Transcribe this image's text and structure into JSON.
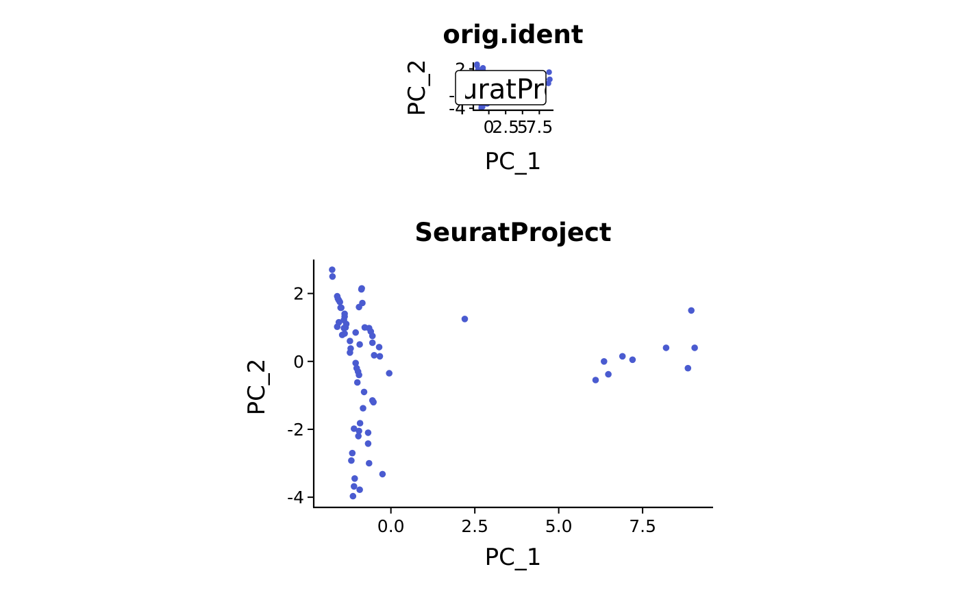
{
  "chart_data": [
    {
      "type": "scatter",
      "title": "orig.ident",
      "xlabel": "PC_1",
      "ylabel": "PC_2",
      "x_ticks": [
        0,
        2.5,
        5,
        7.5
      ],
      "x_tick_labels": [
        "0",
        "2.5",
        "5",
        "7.5"
      ],
      "y_ticks": [
        2,
        0,
        -2,
        -4
      ],
      "y_tick_labels": [
        "2",
        "0",
        "-2",
        "-4"
      ],
      "xlim": [
        -2.3,
        9.6
      ],
      "ylim": [
        -4.3,
        3.0
      ],
      "legend": {
        "placement": "center",
        "entries": [
          "SeuratProject"
        ]
      },
      "color": "#4a5bd0",
      "grid": false,
      "series_ref": "same points as panel 2"
    },
    {
      "type": "scatter",
      "title": "SeuratProject",
      "xlabel": "PC_1",
      "ylabel": "PC_2",
      "x_ticks": [
        0,
        2.5,
        5,
        7.5
      ],
      "x_tick_labels": [
        "0.0",
        "2.5",
        "5.0",
        "7.5"
      ],
      "y_ticks": [
        2,
        0,
        -2,
        -4
      ],
      "y_tick_labels": [
        "2",
        "0",
        "-2",
        "-4"
      ],
      "xlim": [
        -2.3,
        9.6
      ],
      "ylim": [
        -4.3,
        3.0
      ],
      "color": "#4a5bd0",
      "grid": false,
      "points": [
        [
          -1.75,
          2.7
        ],
        [
          -1.74,
          2.5
        ],
        [
          -1.6,
          1.92
        ],
        [
          -1.58,
          1.85
        ],
        [
          -1.55,
          1.8
        ],
        [
          -1.52,
          1.75
        ],
        [
          -1.5,
          1.58
        ],
        [
          -1.48,
          1.58
        ],
        [
          -1.38,
          1.4
        ],
        [
          -1.38,
          1.32
        ],
        [
          -1.4,
          1.22
        ],
        [
          -1.33,
          1.1
        ],
        [
          -1.35,
          1.0
        ],
        [
          -1.4,
          0.98
        ],
        [
          -1.55,
          1.15
        ],
        [
          -1.6,
          1.02
        ],
        [
          -1.45,
          0.78
        ],
        [
          -1.38,
          0.82
        ],
        [
          -1.22,
          0.6
        ],
        [
          -1.2,
          0.38
        ],
        [
          -1.22,
          0.26
        ],
        [
          -1.05,
          0.85
        ],
        [
          -0.93,
          0.5
        ],
        [
          -0.95,
          1.6
        ],
        [
          -0.87,
          2.15
        ],
        [
          -0.88,
          2.12
        ],
        [
          -0.85,
          1.72
        ],
        [
          -0.78,
          1.0
        ],
        [
          -0.65,
          0.98
        ],
        [
          -0.6,
          0.88
        ],
        [
          -0.55,
          0.75
        ],
        [
          -0.55,
          0.55
        ],
        [
          -0.5,
          0.18
        ],
        [
          -0.35,
          0.42
        ],
        [
          -0.33,
          0.15
        ],
        [
          -0.05,
          -0.35
        ],
        [
          -1.05,
          -0.05
        ],
        [
          -1.02,
          -0.2
        ],
        [
          -0.98,
          -0.3
        ],
        [
          -0.95,
          -0.4
        ],
        [
          -1.0,
          -0.62
        ],
        [
          -0.8,
          -0.9
        ],
        [
          -0.55,
          -1.15
        ],
        [
          -0.52,
          -1.2
        ],
        [
          -0.83,
          -1.38
        ],
        [
          -0.92,
          -1.82
        ],
        [
          -1.1,
          -1.98
        ],
        [
          -0.95,
          -2.05
        ],
        [
          -0.68,
          -2.1
        ],
        [
          -0.97,
          -2.2
        ],
        [
          -0.68,
          -2.42
        ],
        [
          -1.15,
          -2.7
        ],
        [
          -1.18,
          -2.92
        ],
        [
          -0.65,
          -3.0
        ],
        [
          -0.25,
          -3.32
        ],
        [
          -1.08,
          -3.45
        ],
        [
          -1.1,
          -3.68
        ],
        [
          -0.93,
          -3.78
        ],
        [
          -1.13,
          -3.97
        ],
        [
          2.2,
          1.25
        ],
        [
          6.1,
          -0.55
        ],
        [
          6.35,
          0.0
        ],
        [
          6.48,
          -0.38
        ],
        [
          6.9,
          0.15
        ],
        [
          7.2,
          0.05
        ],
        [
          8.2,
          0.4
        ],
        [
          8.85,
          -0.2
        ],
        [
          8.95,
          1.5
        ],
        [
          9.05,
          0.4
        ]
      ]
    }
  ]
}
